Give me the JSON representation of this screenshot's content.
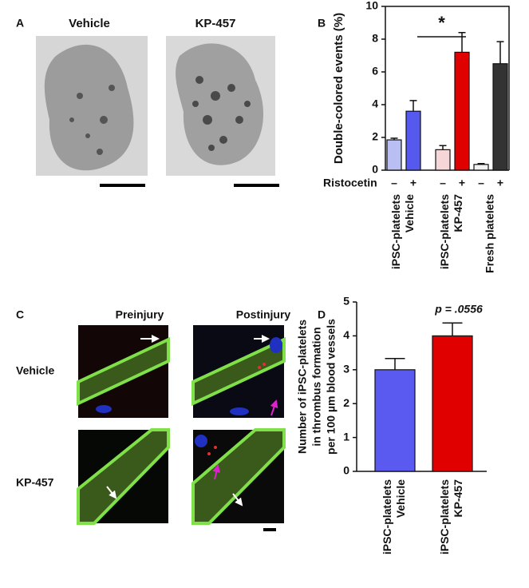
{
  "panels": {
    "a": {
      "label": "A",
      "columns": [
        "Vehicle",
        "KP-457"
      ]
    },
    "b": {
      "label": "B"
    },
    "c": {
      "label": "C",
      "columns": [
        "Preinjury",
        "Postinjury"
      ],
      "rows": [
        "Vehicle",
        "KP-457"
      ]
    },
    "d": {
      "label": "D"
    }
  },
  "chart_data": [
    {
      "type": "bar",
      "y_label": "Double-colored events (%)",
      "categories": [
        "–",
        "+",
        "–",
        "+",
        "–",
        "+"
      ],
      "values": [
        1.85,
        3.6,
        1.25,
        7.2,
        0.35,
        6.5
      ],
      "errors": [
        0.1,
        0.65,
        0.25,
        1.2,
        0.05,
        1.35
      ],
      "colors": [
        "#b9bff2",
        "#5559ee",
        "#f6d6d6",
        "#e00000",
        "#f2f2f2",
        "#333333"
      ],
      "ylim": [
        0,
        10
      ],
      "yticks": [
        0,
        2,
        4,
        6,
        8,
        10
      ],
      "row_label": "Ristocetin",
      "groups": [
        [
          "iPSC-platelets",
          "Vehicle"
        ],
        [
          "iPSC-platelets",
          "KP-457"
        ],
        [
          "Fresh platelets"
        ]
      ],
      "annotation": "*"
    },
    {
      "type": "bar",
      "y_label": [
        "Number of iPSC-platelets",
        "in thrombus formation",
        "per 100 µm blood vessels"
      ],
      "categories": [
        [
          "iPSC-platelets",
          "Vehicle"
        ],
        [
          "iPSC-platelets",
          "KP-457"
        ]
      ],
      "values": [
        3.0,
        4.0
      ],
      "errors": [
        0.33,
        0.38
      ],
      "colors": [
        "#5a5af0",
        "#e00000"
      ],
      "ylim": [
        0,
        5
      ],
      "yticks": [
        0,
        1,
        2,
        3,
        4,
        5
      ],
      "annotation": "p = .0556"
    }
  ]
}
